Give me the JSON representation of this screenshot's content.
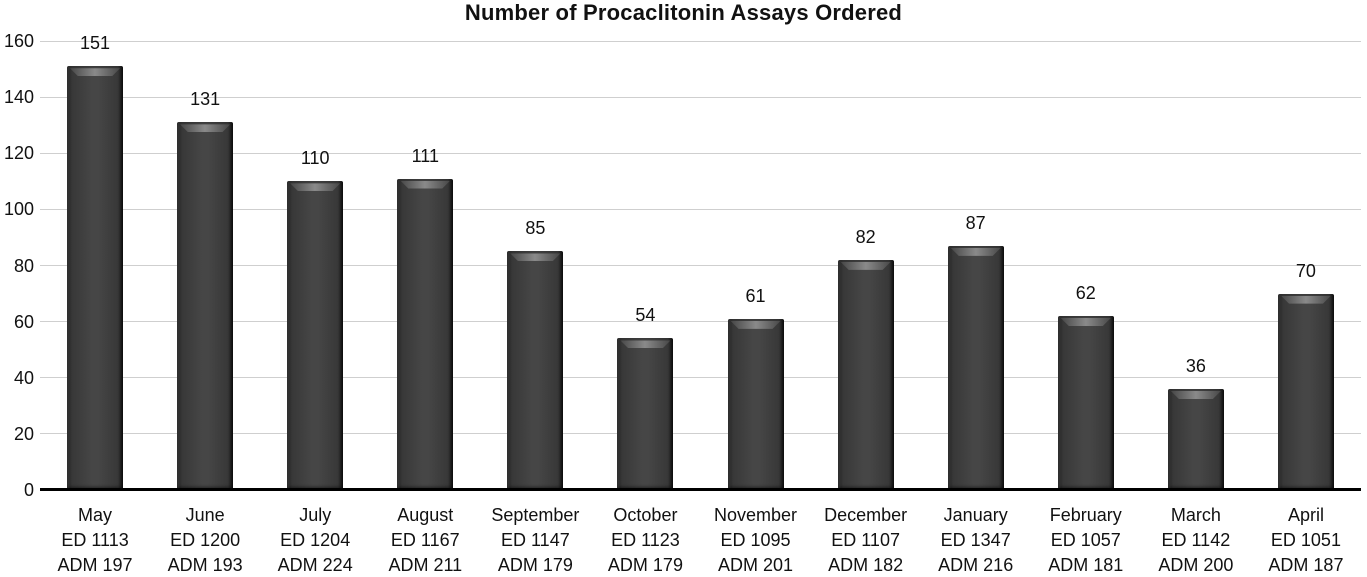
{
  "chart_data": {
    "type": "bar",
    "title": "Number of Procaclitonin Assays Ordered",
    "categories": [
      "May",
      "June",
      "July",
      "August",
      "September",
      "October",
      "November",
      "December",
      "January",
      "February",
      "March",
      "April"
    ],
    "category_sublabels": [
      [
        "ED 1113",
        "ADM 197"
      ],
      [
        "ED 1200",
        "ADM 193"
      ],
      [
        "ED 1204",
        "ADM 224"
      ],
      [
        "ED 1167",
        "ADM 211"
      ],
      [
        "ED 1147",
        "ADM 179"
      ],
      [
        "ED 1123",
        "ADM 179"
      ],
      [
        "ED 1095",
        "ADM 201"
      ],
      [
        "ED 1107",
        "ADM 182"
      ],
      [
        "ED 1347",
        "ADM 216"
      ],
      [
        "ED 1057",
        "ADM 181"
      ],
      [
        "ED 1142",
        "ADM 200"
      ],
      [
        "ED 1051",
        "ADM 187"
      ]
    ],
    "values": [
      151,
      131,
      110,
      111,
      85,
      54,
      61,
      82,
      87,
      62,
      36,
      70
    ],
    "xlabel": "",
    "ylabel": "",
    "ylim": [
      0,
      160
    ],
    "ytick_step": 20,
    "yticks": [
      0,
      20,
      40,
      60,
      80,
      100,
      120,
      140,
      160
    ],
    "grid": true,
    "legend": false,
    "bar_color": "#3f3f3f",
    "gridline_color": "#cfcfcf",
    "axis_line_color": "#000000",
    "text_color": "#111111",
    "background_color": "#ffffff"
  }
}
